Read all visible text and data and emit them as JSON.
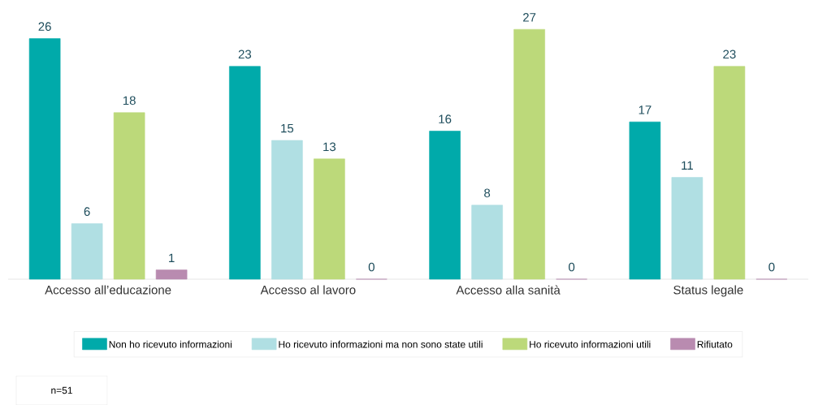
{
  "chart_data": {
    "type": "bar",
    "categories": [
      "Accesso all’educazione",
      "Accesso al lavoro",
      "Accesso alla sanità",
      "Status legale"
    ],
    "series": [
      {
        "name": "Non ho ricevuto informazioni",
        "color": "#00aaaa",
        "values": [
          26,
          23,
          16,
          17
        ]
      },
      {
        "name": "Ho ricevuto informazioni ma non sono state utili",
        "color": "#b0dfe3",
        "values": [
          6,
          15,
          8,
          11
        ]
      },
      {
        "name": "Ho ricevuto informazioni utili",
        "color": "#bcd97a",
        "values": [
          18,
          13,
          27,
          23
        ]
      },
      {
        "name": "Rifiutato",
        "color": "#b98bb0",
        "values": [
          1,
          0,
          0,
          0
        ]
      }
    ],
    "data_labels": true,
    "legend": "bottom",
    "annotations": [
      "n=51"
    ]
  }
}
